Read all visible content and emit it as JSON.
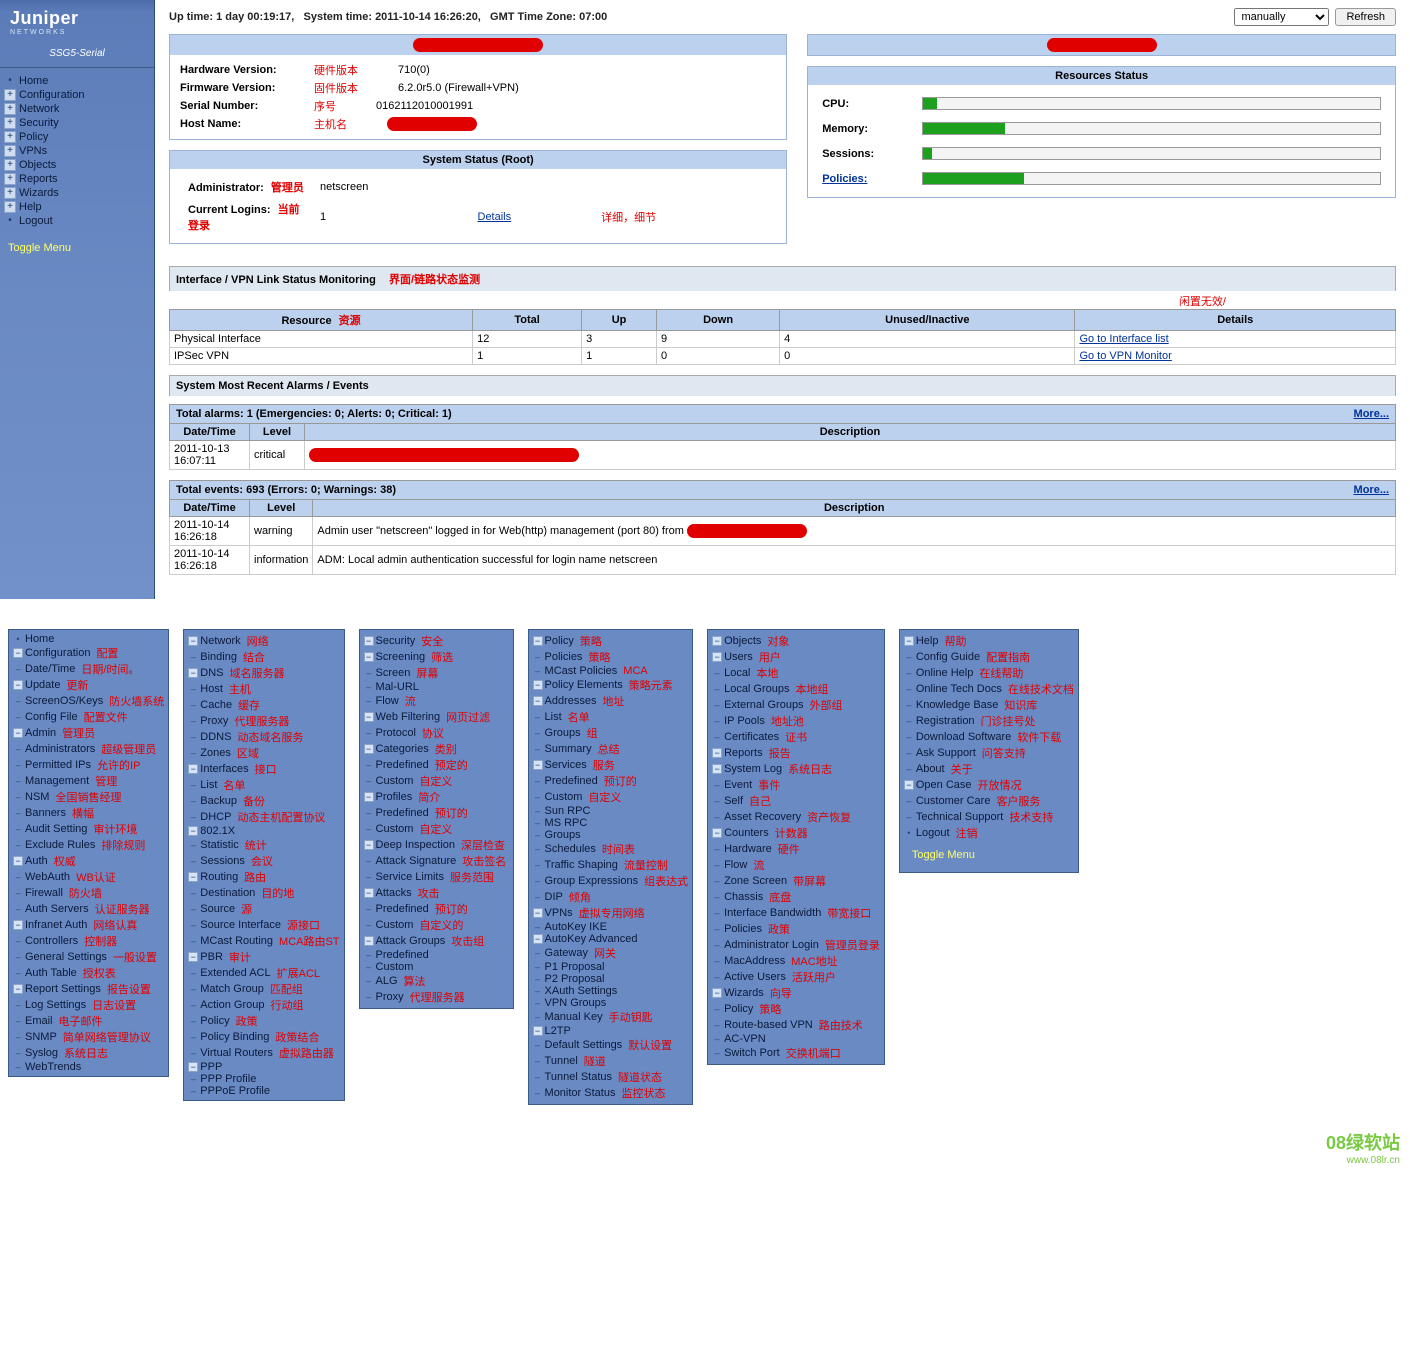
{
  "header": {
    "uptime_label": "Up time:",
    "uptime_value": "1 day 00:19:17,",
    "systime_label": "System time:",
    "systime_value": "2011-10-14 16:26:20,",
    "tz_label": "GMT Time Zone:",
    "tz_value": "07:00",
    "refresh_select": "manually",
    "refresh_btn": "Refresh"
  },
  "logo": {
    "brand": "Juniper",
    "sub": "NETWORKS",
    "model": "SSG5-Serial"
  },
  "nav": [
    {
      "icon": "dot",
      "label": "Home"
    },
    {
      "icon": "plus",
      "label": "Configuration"
    },
    {
      "icon": "plus",
      "label": "Network"
    },
    {
      "icon": "plus",
      "label": "Security"
    },
    {
      "icon": "plus",
      "label": "Policy"
    },
    {
      "icon": "plus",
      "label": "VPNs"
    },
    {
      "icon": "plus",
      "label": "Objects"
    },
    {
      "icon": "plus",
      "label": "Reports"
    },
    {
      "icon": "plus",
      "label": "Wizards"
    },
    {
      "icon": "plus",
      "label": "Help"
    },
    {
      "icon": "dot",
      "label": "Logout"
    }
  ],
  "toggle": "Toggle Menu",
  "device": {
    "hw_k": "Hardware Version:",
    "hw_n": "硬件版本",
    "hw_v": "710(0)",
    "fw_k": "Firmware Version:",
    "fw_n": "固件版本",
    "fw_v": "6.2.0r5.0 (Firewall+VPN)",
    "sn_k": "Serial Number:",
    "sn_n": "序号",
    "sn_v": "0162112010001991",
    "host_k": "Host Name:",
    "host_n": "主机名"
  },
  "sys_status": {
    "title": "System Status  (Root)",
    "admin_k": "Administrator:",
    "admin_n": "管理员",
    "admin_v": "netscreen",
    "login_k": "Current Logins:",
    "login_n": "当前登录",
    "login_v": "1",
    "details": "Details",
    "details_n": "详细，细节"
  },
  "resources": {
    "title": "Resources Status",
    "rows": [
      {
        "k": "CPU:",
        "pct": 3
      },
      {
        "k": "Memory:",
        "pct": 18
      },
      {
        "k": "Sessions:",
        "pct": 2
      },
      {
        "k": "Policies:",
        "pct": 22,
        "link": true
      }
    ]
  },
  "interface_mon": {
    "title": "Interface / VPN Link Status Monitoring",
    "title_n": "界面/链路状态监测",
    "idle_n": "闲置无效/",
    "cols": [
      "Resource",
      "Total",
      "Up",
      "Down",
      "Unused/Inactive",
      "Details"
    ],
    "col_n": [
      "资源",
      "",
      "",
      "",
      "",
      ""
    ],
    "rows": [
      {
        "c": [
          "Physical Interface",
          "12",
          "3",
          "9",
          "4",
          "Go to Interface list"
        ]
      },
      {
        "c": [
          "IPSec VPN",
          "1",
          "1",
          "0",
          "0",
          "Go to VPN Monitor"
        ]
      }
    ]
  },
  "alarms_events": {
    "title": "System Most Recent Alarms   /   Events",
    "alarm_summary": "Total alarms: 1    (Emergencies: 0; Alerts: 0; Critical: 1)",
    "more": "More...",
    "alarm_cols": [
      "Date/Time",
      "Level",
      "Description"
    ],
    "alarm_rows": [
      {
        "dt": "2011-10-13 16:07:11",
        "lvl": "critical",
        "desc": ""
      }
    ],
    "event_summary": "Total events: 693    (Errors: 0; Warnings: 38)",
    "event_cols": [
      "Date/Time",
      "Level",
      "Description"
    ],
    "event_rows": [
      {
        "dt": "2011-10-14 16:26:18",
        "lvl": "warning",
        "desc": "Admin user \"netscreen\" logged in for Web(http) management (port 80) from"
      },
      {
        "dt": "2011-10-14 16:26:18",
        "lvl": "information",
        "desc": "ADM: Local admin authentication successful for login name netscreen"
      }
    ]
  },
  "menus": {
    "col1": [
      {
        "i": 0,
        "ic": "dot",
        "t": "Home"
      },
      {
        "i": 0,
        "ic": "minus",
        "t": "Configuration",
        "a": "配置"
      },
      {
        "i": 1,
        "ic": "dash",
        "t": "Date/Time",
        "a": "日期/时间。"
      },
      {
        "i": 1,
        "ic": "minus",
        "t": "Update",
        "a": "更新"
      },
      {
        "i": 2,
        "ic": "dash",
        "t": "ScreenOS/Keys",
        "a": "防火墙系统"
      },
      {
        "i": 2,
        "ic": "dash",
        "t": "Config File",
        "a": "配置文件"
      },
      {
        "i": 1,
        "ic": "minus",
        "t": "Admin",
        "a": "管理员"
      },
      {
        "i": 2,
        "ic": "dash",
        "t": "Administrators",
        "a": "超级管理员"
      },
      {
        "i": 2,
        "ic": "dash",
        "t": "Permitted IPs",
        "a": "允许的IP"
      },
      {
        "i": 2,
        "ic": "dash",
        "t": "Management",
        "a": "管理"
      },
      {
        "i": 2,
        "ic": "dash",
        "t": "NSM",
        "a": "全国销售经理"
      },
      {
        "i": 2,
        "ic": "dash",
        "t": "Banners",
        "a": "横幅"
      },
      {
        "i": 2,
        "ic": "dash",
        "t": "Audit Setting",
        "a": "审计环境"
      },
      {
        "i": 2,
        "ic": "dash",
        "t": "Exclude Rules",
        "a": "排除规则"
      },
      {
        "i": 1,
        "ic": "minus",
        "t": "Auth",
        "a": "权威"
      },
      {
        "i": 2,
        "ic": "dash",
        "t": "WebAuth",
        "a": "WB认证"
      },
      {
        "i": 2,
        "ic": "dash",
        "t": "Firewall",
        "a": "防火墙"
      },
      {
        "i": 2,
        "ic": "dash",
        "t": "Auth Servers",
        "a": "认证服务器"
      },
      {
        "i": 1,
        "ic": "minus",
        "t": "Infranet Auth",
        "a": "网络认真"
      },
      {
        "i": 2,
        "ic": "dash",
        "t": "Controllers",
        "a": "控制器"
      },
      {
        "i": 2,
        "ic": "dash",
        "t": "General Settings",
        "a": "一般设置"
      },
      {
        "i": 2,
        "ic": "dash",
        "t": "Auth Table",
        "a": "授权表"
      },
      {
        "i": 1,
        "ic": "minus",
        "t": "Report Settings",
        "a": "报告设置"
      },
      {
        "i": 2,
        "ic": "dash",
        "t": "Log Settings",
        "a": "日志设置"
      },
      {
        "i": 2,
        "ic": "dash",
        "t": "Email",
        "a": "电子邮件"
      },
      {
        "i": 2,
        "ic": "dash",
        "t": "SNMP",
        "a": "简单网络管理协议"
      },
      {
        "i": 2,
        "ic": "dash",
        "t": "Syslog",
        "a": "系统日志"
      },
      {
        "i": 2,
        "ic": "dash",
        "t": "WebTrends"
      }
    ],
    "col2": [
      {
        "i": 0,
        "ic": "minus",
        "t": "Network",
        "a": "网络"
      },
      {
        "i": 1,
        "ic": "dash",
        "t": "Binding",
        "a": "结合"
      },
      {
        "i": 1,
        "ic": "minus",
        "t": "DNS",
        "a": "域名服务器"
      },
      {
        "i": 2,
        "ic": "dash",
        "t": "Host",
        "a": "主机"
      },
      {
        "i": 2,
        "ic": "dash",
        "t": "Cache",
        "a": "缓存"
      },
      {
        "i": 2,
        "ic": "dash",
        "t": "Proxy",
        "a": "代理服务器"
      },
      {
        "i": 2,
        "ic": "dash",
        "t": "DDNS",
        "a": "动态域名服务"
      },
      {
        "i": 1,
        "ic": "dash",
        "t": "Zones",
        "a": "区域"
      },
      {
        "i": 1,
        "ic": "minus",
        "t": "Interfaces",
        "a": "接口"
      },
      {
        "i": 2,
        "ic": "dash",
        "t": "List",
        "a": "名单"
      },
      {
        "i": 2,
        "ic": "dash",
        "t": "Backup",
        "a": "备份"
      },
      {
        "i": 1,
        "ic": "dash",
        "t": "DHCP",
        "a": "动态主机配置协议"
      },
      {
        "i": 1,
        "ic": "minus",
        "t": "802.1X"
      },
      {
        "i": 2,
        "ic": "dash",
        "t": "Statistic",
        "a": "统计"
      },
      {
        "i": 2,
        "ic": "dash",
        "t": "Sessions",
        "a": "会议"
      },
      {
        "i": 1,
        "ic": "minus",
        "t": "Routing",
        "a": "路由"
      },
      {
        "i": 2,
        "ic": "dash",
        "t": "Destination",
        "a": "目的地"
      },
      {
        "i": 2,
        "ic": "dash",
        "t": "Source",
        "a": "源"
      },
      {
        "i": 2,
        "ic": "dash",
        "t": "Source Interface",
        "a": "源接口"
      },
      {
        "i": 2,
        "ic": "dash",
        "t": "MCast Routing",
        "a": "MCA路由ST"
      },
      {
        "i": 2,
        "ic": "minus",
        "t": "PBR",
        "a": "审计"
      },
      {
        "i": 3,
        "ic": "dash",
        "t": "Extended ACL",
        "a": "扩展ACL"
      },
      {
        "i": 3,
        "ic": "dash",
        "t": "Match Group",
        "a": "匹配组"
      },
      {
        "i": 3,
        "ic": "dash",
        "t": "Action Group",
        "a": "行动组"
      },
      {
        "i": 3,
        "ic": "dash",
        "t": "Policy",
        "a": "政策"
      },
      {
        "i": 3,
        "ic": "dash",
        "t": "Policy Binding",
        "a": "政策结合"
      },
      {
        "i": 2,
        "ic": "dash",
        "t": "Virtual Routers",
        "a": "虚拟路由器"
      },
      {
        "i": 1,
        "ic": "minus",
        "t": "PPP"
      },
      {
        "i": 2,
        "ic": "dash",
        "t": "PPP Profile"
      },
      {
        "i": 2,
        "ic": "dash",
        "t": "PPPoE Profile"
      }
    ],
    "col3": [
      {
        "i": 0,
        "ic": "minus",
        "t": "Security",
        "a": "安全"
      },
      {
        "i": 1,
        "ic": "minus",
        "t": "Screening",
        "a": "筛选"
      },
      {
        "i": 2,
        "ic": "dash",
        "t": "Screen",
        "a": "屏幕"
      },
      {
        "i": 2,
        "ic": "dash",
        "t": "Mal-URL"
      },
      {
        "i": 2,
        "ic": "dash",
        "t": "Flow",
        "a": "流"
      },
      {
        "i": 1,
        "ic": "minus",
        "t": "Web Filtering",
        "a": "网页过滤"
      },
      {
        "i": 2,
        "ic": "dash",
        "t": "Protocol",
        "a": "协议"
      },
      {
        "i": 2,
        "ic": "minus",
        "t": "Categories",
        "a": "类别"
      },
      {
        "i": 3,
        "ic": "dash",
        "t": "Predefined",
        "a": "预定的"
      },
      {
        "i": 3,
        "ic": "dash",
        "t": "Custom",
        "a": "自定义"
      },
      {
        "i": 2,
        "ic": "minus",
        "t": "Profiles",
        "a": "简介"
      },
      {
        "i": 3,
        "ic": "dash",
        "t": "Predefined",
        "a": "预订的"
      },
      {
        "i": 3,
        "ic": "dash",
        "t": "Custom",
        "a": "自定义"
      },
      {
        "i": 1,
        "ic": "minus",
        "t": "Deep Inspection",
        "a": "深层检查"
      },
      {
        "i": 2,
        "ic": "dash",
        "t": "Attack Signature",
        "a": "攻击签名"
      },
      {
        "i": 2,
        "ic": "dash",
        "t": "Service Limits",
        "a": "服务范围"
      },
      {
        "i": 2,
        "ic": "minus",
        "t": "Attacks",
        "a": "攻击"
      },
      {
        "i": 3,
        "ic": "dash",
        "t": "Predefined",
        "a": "预订的"
      },
      {
        "i": 3,
        "ic": "dash",
        "t": "Custom",
        "a": "自定义的"
      },
      {
        "i": 2,
        "ic": "minus",
        "t": "Attack Groups",
        "a": "攻击组"
      },
      {
        "i": 3,
        "ic": "dash",
        "t": "Predefined"
      },
      {
        "i": 3,
        "ic": "dash",
        "t": "Custom"
      },
      {
        "i": 1,
        "ic": "dash",
        "t": "ALG",
        "a": "算法"
      },
      {
        "i": 1,
        "ic": "dash",
        "t": "Proxy",
        "a": "代理服务器"
      }
    ],
    "col4": [
      {
        "i": 0,
        "ic": "minus",
        "t": "Policy",
        "a": "策略"
      },
      {
        "i": 1,
        "ic": "dash",
        "t": "Policies",
        "a": "策略"
      },
      {
        "i": 1,
        "ic": "dash",
        "t": "MCast Policies",
        "a": "MCA"
      },
      {
        "i": 1,
        "ic": "minus",
        "t": "Policy Elements",
        "a": "策略元素"
      },
      {
        "i": 2,
        "ic": "minus",
        "t": "Addresses",
        "a": "地址"
      },
      {
        "i": 3,
        "ic": "dash",
        "t": "List",
        "a": "名单"
      },
      {
        "i": 3,
        "ic": "dash",
        "t": "Groups",
        "a": "组"
      },
      {
        "i": 3,
        "ic": "dash",
        "t": "Summary",
        "a": "总结"
      },
      {
        "i": 2,
        "ic": "minus",
        "t": "Services",
        "a": "服务"
      },
      {
        "i": 3,
        "ic": "dash",
        "t": "Predefined",
        "a": "预订的"
      },
      {
        "i": 3,
        "ic": "dash",
        "t": "Custom",
        "a": "自定义"
      },
      {
        "i": 3,
        "ic": "dash",
        "t": "Sun RPC"
      },
      {
        "i": 3,
        "ic": "dash",
        "t": "MS RPC"
      },
      {
        "i": 3,
        "ic": "dash",
        "t": "Groups"
      },
      {
        "i": 2,
        "ic": "dash",
        "t": "Schedules",
        "a": "时间表"
      },
      {
        "i": 2,
        "ic": "dash",
        "t": "Traffic Shaping",
        "a": "流量控制"
      },
      {
        "i": 2,
        "ic": "dash",
        "t": "Group Expressions",
        "a": "组表达式"
      },
      {
        "i": 2,
        "ic": "dash",
        "t": "DIP",
        "a": "倾角"
      },
      {
        "i": 0,
        "ic": "minus",
        "t": "VPNs",
        "a": "虚拟专用网络"
      },
      {
        "i": 1,
        "ic": "dash",
        "t": "AutoKey IKE"
      },
      {
        "i": 1,
        "ic": "minus",
        "t": "AutoKey Advanced"
      },
      {
        "i": 2,
        "ic": "dash",
        "t": "Gateway",
        "a": "网关"
      },
      {
        "i": 2,
        "ic": "dash",
        "t": "P1 Proposal"
      },
      {
        "i": 2,
        "ic": "dash",
        "t": "P2 Proposal"
      },
      {
        "i": 2,
        "ic": "dash",
        "t": "XAuth Settings"
      },
      {
        "i": 2,
        "ic": "dash",
        "t": "VPN Groups"
      },
      {
        "i": 1,
        "ic": "dash",
        "t": "Manual Key",
        "a": "手动钥匙"
      },
      {
        "i": 1,
        "ic": "minus",
        "t": "L2TP"
      },
      {
        "i": 2,
        "ic": "dash",
        "t": "Default Settings",
        "a": "默认设置"
      },
      {
        "i": 2,
        "ic": "dash",
        "t": "Tunnel",
        "a": "隧道"
      },
      {
        "i": 2,
        "ic": "dash",
        "t": "Tunnel Status",
        "a": "隧道状态"
      },
      {
        "i": 1,
        "ic": "dash",
        "t": "Monitor Status",
        "a": "监控状态"
      }
    ],
    "col5": [
      {
        "i": 0,
        "ic": "minus",
        "t": "Objects",
        "a": "对象"
      },
      {
        "i": 1,
        "ic": "minus",
        "t": "Users",
        "a": "用户"
      },
      {
        "i": 2,
        "ic": "dash",
        "t": "Local",
        "a": "本地"
      },
      {
        "i": 2,
        "ic": "dash",
        "t": "Local Groups",
        "a": "本地组"
      },
      {
        "i": 2,
        "ic": "dash",
        "t": "External Groups",
        "a": "外部组"
      },
      {
        "i": 1,
        "ic": "dash",
        "t": "IP Pools",
        "a": "地址池"
      },
      {
        "i": 1,
        "ic": "dash",
        "t": "Certificates",
        "a": "证书"
      },
      {
        "i": 0,
        "ic": "minus",
        "t": "Reports",
        "a": "报告"
      },
      {
        "i": 1,
        "ic": "minus",
        "t": "System Log",
        "a": "系统日志"
      },
      {
        "i": 2,
        "ic": "dash",
        "t": "Event",
        "a": "事件"
      },
      {
        "i": 2,
        "ic": "dash",
        "t": "Self",
        "a": "自己"
      },
      {
        "i": 2,
        "ic": "dash",
        "t": "Asset Recovery",
        "a": "资产恢复"
      },
      {
        "i": 1,
        "ic": "minus",
        "t": "Counters",
        "a": "计数器"
      },
      {
        "i": 2,
        "ic": "dash",
        "t": "Hardware",
        "a": "硬件"
      },
      {
        "i": 2,
        "ic": "dash",
        "t": "Flow",
        "a": "流"
      },
      {
        "i": 2,
        "ic": "dash",
        "t": "Zone Screen",
        "a": "带屏幕"
      },
      {
        "i": 1,
        "ic": "dash",
        "t": "Chassis",
        "a": "底盘"
      },
      {
        "i": 1,
        "ic": "dash",
        "t": "Interface Bandwidth",
        "a": "带宽接口"
      },
      {
        "i": 1,
        "ic": "dash",
        "t": "Policies",
        "a": "政策"
      },
      {
        "i": 1,
        "ic": "dash",
        "t": "Administrator Login",
        "a": "管理员登录"
      },
      {
        "i": 1,
        "ic": "dash",
        "t": "MacAddress",
        "a": "MAC地址"
      },
      {
        "i": 1,
        "ic": "dash",
        "t": "Active Users",
        "a": "活跃用户"
      },
      {
        "i": 0,
        "ic": "minus",
        "t": "Wizards",
        "a": "向导"
      },
      {
        "i": 1,
        "ic": "dash",
        "t": "Policy",
        "a": "策略"
      },
      {
        "i": 1,
        "ic": "dash",
        "t": "Route-based VPN",
        "a": "路由技术"
      },
      {
        "i": 1,
        "ic": "dash",
        "t": "AC-VPN"
      },
      {
        "i": 1,
        "ic": "dash",
        "t": "Switch Port",
        "a": "交换机端口"
      }
    ],
    "col6": [
      {
        "i": 0,
        "ic": "minus",
        "t": "Help",
        "a": "帮助"
      },
      {
        "i": 1,
        "ic": "dash",
        "t": "Config Guide",
        "a": "配置指南"
      },
      {
        "i": 1,
        "ic": "dash",
        "t": "Online Help",
        "a": "在线帮助"
      },
      {
        "i": 1,
        "ic": "dash",
        "t": "Online Tech Docs",
        "a": "在线技术文档"
      },
      {
        "i": 1,
        "ic": "dash",
        "t": "Knowledge Base",
        "a": "知识库"
      },
      {
        "i": 1,
        "ic": "dash",
        "t": "Registration",
        "a": "门诊挂号处"
      },
      {
        "i": 1,
        "ic": "dash",
        "t": "Download Software",
        "a": "软件下载"
      },
      {
        "i": 1,
        "ic": "dash",
        "t": "Ask Support",
        "a": "问答支持"
      },
      {
        "i": 1,
        "ic": "dash",
        "t": "About",
        "a": "关于"
      },
      {
        "i": 1,
        "ic": "minus",
        "t": "Open Case",
        "a": "开放情况"
      },
      {
        "i": 2,
        "ic": "dash",
        "t": "Customer Care",
        "a": "客户服务"
      },
      {
        "i": 2,
        "ic": "dash",
        "t": "Technical Support",
        "a": "技术支持"
      },
      {
        "i": 0,
        "ic": "dot",
        "t": "Logout",
        "a": "注销"
      }
    ]
  },
  "watermark": {
    "big": "08绿软站",
    "small": "www.08lr.cn"
  }
}
